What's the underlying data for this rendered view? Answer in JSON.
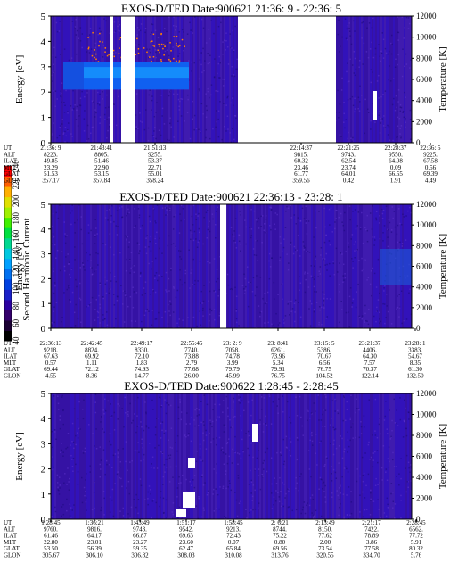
{
  "colorbar": {
    "label": "Second Harmonic Current",
    "ticks": [
      "40",
      "60",
      "80",
      "100",
      "120",
      "140",
      "160",
      "180",
      "200",
      "220",
      "240"
    ],
    "colors": [
      "#000000",
      "#1b0033",
      "#34006b",
      "#2a00a0",
      "#1a20c8",
      "#0040e0",
      "#0070f0",
      "#00a0ff",
      "#00c8e0",
      "#00d890",
      "#00e040",
      "#40f000",
      "#a0f000",
      "#e0e000",
      "#ffb000",
      "#ff6000",
      "#ff0000"
    ]
  },
  "chart_data": [
    {
      "type": "heatmap",
      "title": "EXOS-D/TED   Date:900621  21:36: 9 - 22:36: 5",
      "ylabel": "Energy [eV]",
      "ylabel_right": "Temperature [K]",
      "ylim": [
        0,
        5
      ],
      "yticks": [
        "0",
        "1",
        "2",
        "3",
        "4",
        "5"
      ],
      "ylim_right": [
        0,
        12000
      ],
      "yticks_right": [
        "0",
        "2000",
        "4000",
        "6000",
        "8000",
        "10000",
        "12000"
      ],
      "row_labels": [
        "UT",
        "ALT",
        "ILAT",
        "MLT",
        "GLAT",
        "GLON"
      ],
      "columns": [
        [
          "21:36: 9",
          "8223.",
          "49.85",
          "23.29",
          "51.53",
          "357.17"
        ],
        [
          "21:43:41",
          "8805.",
          "51.46",
          "22.90",
          "53.15",
          "357.84"
        ],
        [
          "21:51:13",
          "9255.",
          "53.37",
          "22.71",
          "55.01",
          "358.24"
        ],
        [
          "22:14:37",
          "9815.",
          "60.32",
          "23.46",
          "61.77",
          "359.56"
        ],
        [
          "22:21:25",
          "9743.",
          "62.54",
          "23.74",
          "64.01",
          "0.42"
        ],
        [
          "22:28:37",
          "9550.",
          "64.98",
          "0.09",
          "66.55",
          "1.91"
        ],
        [
          "22:36: 5",
          "9225.",
          "67.58",
          "0.56",
          "69.39",
          "4.49"
        ]
      ]
    },
    {
      "type": "heatmap",
      "title": "EXOS-D/TED   Date:900621  22:36:13 - 23:28: 1",
      "ylabel": "Energy [eV]",
      "ylabel_right": "Temperature [K]",
      "ylim": [
        0,
        5
      ],
      "yticks": [
        "0",
        "1",
        "2",
        "3",
        "4",
        "5"
      ],
      "ylim_right": [
        0,
        12000
      ],
      "yticks_right": [
        "0",
        "2000",
        "4000",
        "6000",
        "8000",
        "10000",
        "12000"
      ],
      "row_labels": [
        "UT",
        "ALT",
        "ILAT",
        "MLT",
        "GLAT",
        "GLON"
      ],
      "columns": [
        [
          "22:36:13",
          "9218.",
          "67.63",
          "0.57",
          "69.44",
          "4.55"
        ],
        [
          "22:42:45",
          "8824.",
          "69.92",
          "1.11",
          "72.12",
          "8.36"
        ],
        [
          "22:49:17",
          "8330.",
          "72.10",
          "1.83",
          "74.93",
          "14.77"
        ],
        [
          "22:55:45",
          "7740.",
          "73.88",
          "2.79",
          "77.68",
          "26.00"
        ],
        [
          "23: 2: 9",
          "7058.",
          "74.78",
          "3.99",
          "79.79",
          "45.99"
        ],
        [
          "23: 8:41",
          "6261.",
          "73.96",
          "5.34",
          "79.91",
          "76.75"
        ],
        [
          "23:15: 5",
          "5386.",
          "70.67",
          "6.56",
          "76.75",
          "104.52"
        ],
        [
          "23:21:37",
          "4406.",
          "64.30",
          "7.57",
          "70.37",
          "122.14"
        ],
        [
          "23:28: 1",
          "3383.",
          "54.67",
          "8.35",
          "61.30",
          "132.50"
        ]
      ]
    },
    {
      "type": "heatmap",
      "title": "EXOS-D/TED   Date:900622  1:28:45 - 2:28:45",
      "ylabel": "Energy [eV]",
      "ylabel_right": "Temperature [K]",
      "ylim": [
        0,
        5
      ],
      "yticks": [
        "0",
        "1",
        "2",
        "3",
        "4",
        "5"
      ],
      "ylim_right": [
        0,
        12000
      ],
      "yticks_right": [
        "0",
        "2000",
        "4000",
        "6000",
        "8000",
        "10000",
        "12000"
      ],
      "row_labels": [
        "UT",
        "ALT",
        "ILAT",
        "MLT",
        "GLAT",
        "GLON"
      ],
      "columns": [
        [
          "1:28:45",
          "9760.",
          "61.46",
          "22.80",
          "53.50",
          "305.67"
        ],
        [
          "1:36:21",
          "9816.",
          "64.17",
          "23.01",
          "56.39",
          "306.10"
        ],
        [
          "1:43:49",
          "9743.",
          "66.87",
          "23.27",
          "59.35",
          "306.82"
        ],
        [
          "1:51:17",
          "9542.",
          "69.63",
          "23.60",
          "62.47",
          "308.03"
        ],
        [
          "1:58:45",
          "9213.",
          "72.43",
          "0.07",
          "65.84",
          "310.08"
        ],
        [
          "2: 6:21",
          "8744.",
          "75.22",
          "0.80",
          "69.56",
          "313.76"
        ],
        [
          "2:13:49",
          "8150.",
          "77.62",
          "2.00",
          "73.54",
          "320.55"
        ],
        [
          "2:21:17",
          "7422.",
          "78.89",
          "3.86",
          "77.58",
          "334.70"
        ],
        [
          "2:28:45",
          "6562.",
          "77.72",
          "5.91",
          "80.32",
          "5.76"
        ]
      ]
    }
  ]
}
